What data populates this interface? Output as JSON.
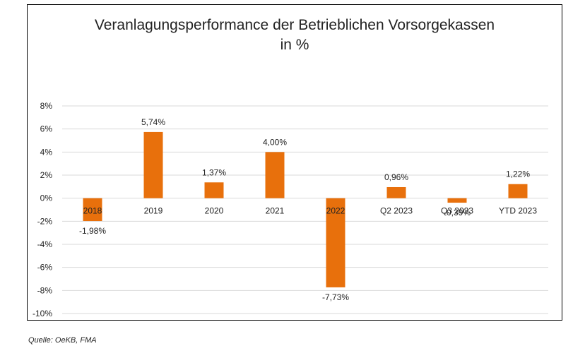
{
  "chart_data": {
    "type": "bar",
    "title": "Veranlagungsperformance der Betrieblichen Vorsorgekassen",
    "subtitle": "in %",
    "xlabel": "",
    "ylabel": "",
    "categories": [
      "2018",
      "2019",
      "2020",
      "2021",
      "2022",
      "Q2 2023",
      "Q3 2023",
      "YTD 2023"
    ],
    "values": [
      -1.98,
      5.74,
      1.37,
      4.0,
      -7.73,
      0.96,
      -0.39,
      1.22
    ],
    "data_labels": [
      "-1,98%",
      "5,74%",
      "1,37%",
      "4,00%",
      "-7,73%",
      "0,96%",
      "-0,39%",
      "1,22%"
    ],
    "ylim": [
      -10,
      8
    ],
    "yticks": [
      8,
      6,
      4,
      2,
      0,
      -2,
      -4,
      -6,
      -8,
      -10
    ],
    "ytick_labels": [
      "8%",
      "6%",
      "4%",
      "2%",
      "0%",
      "-2%",
      "-4%",
      "-6%",
      "-8%",
      "-10%"
    ],
    "grid": true,
    "legend": "none",
    "bar_color": "#E8700C"
  },
  "source": "Quelle: OeKB, FMA"
}
